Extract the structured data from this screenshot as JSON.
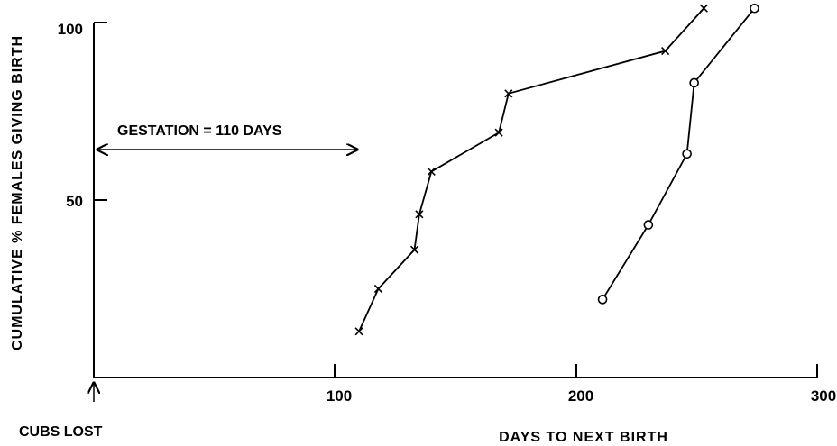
{
  "chart_data": {
    "type": "line",
    "title": "",
    "xlabel": "DAYS TO NEXT BIRTH",
    "ylabel": "CUMULATIVE % FEMALES GIVING BIRTH",
    "xlim": [
      0,
      300
    ],
    "ylim": [
      0,
      100
    ],
    "x_ticks": [
      100,
      200,
      300
    ],
    "y_ticks": [
      50,
      100
    ],
    "x_tick_labels": [
      "100",
      "200",
      "300"
    ],
    "y_tick_labels": [
      "50",
      "100"
    ],
    "grid": false,
    "legend": "none",
    "series": [
      {
        "marker": "x",
        "x": [
          110,
          118,
          133,
          135,
          140,
          168,
          172,
          237,
          253
        ],
        "y": [
          13,
          25,
          36,
          46,
          58,
          69,
          80,
          92,
          104
        ]
      },
      {
        "marker": "o",
        "x": [
          211,
          230,
          246,
          249,
          274
        ],
        "y": [
          22,
          43,
          63,
          83,
          104
        ]
      }
    ],
    "annotations": {
      "gestation": {
        "text": "GESTATION = 110 DAYS",
        "x_from": 0,
        "x_to": 110,
        "y": 66
      },
      "origin": {
        "text": "CUBS LOST",
        "x": 0
      }
    }
  }
}
